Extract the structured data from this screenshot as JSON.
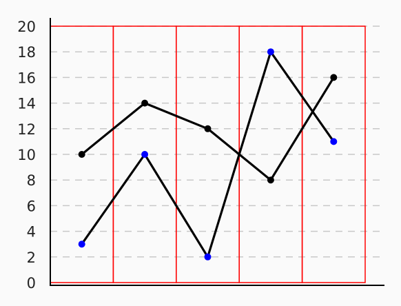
{
  "chart_data": {
    "type": "line",
    "x": [
      0,
      1,
      2,
      3,
      4
    ],
    "ylim": [
      0,
      20
    ],
    "yticks": [
      "0",
      "2",
      "4",
      "6",
      "8",
      "10",
      "12",
      "14",
      "16",
      "18",
      "20"
    ],
    "grid": true,
    "series": [
      {
        "values": [
          10,
          14,
          12,
          8,
          16
        ],
        "color": "#000000",
        "marker_color": "#000000"
      },
      {
        "values": [
          3,
          10,
          2,
          18,
          11
        ],
        "color": "#000000",
        "marker_color": "#0000ff"
      }
    ],
    "category_band_color": "#ff0000",
    "gridline_color": "#c8c8c8"
  }
}
